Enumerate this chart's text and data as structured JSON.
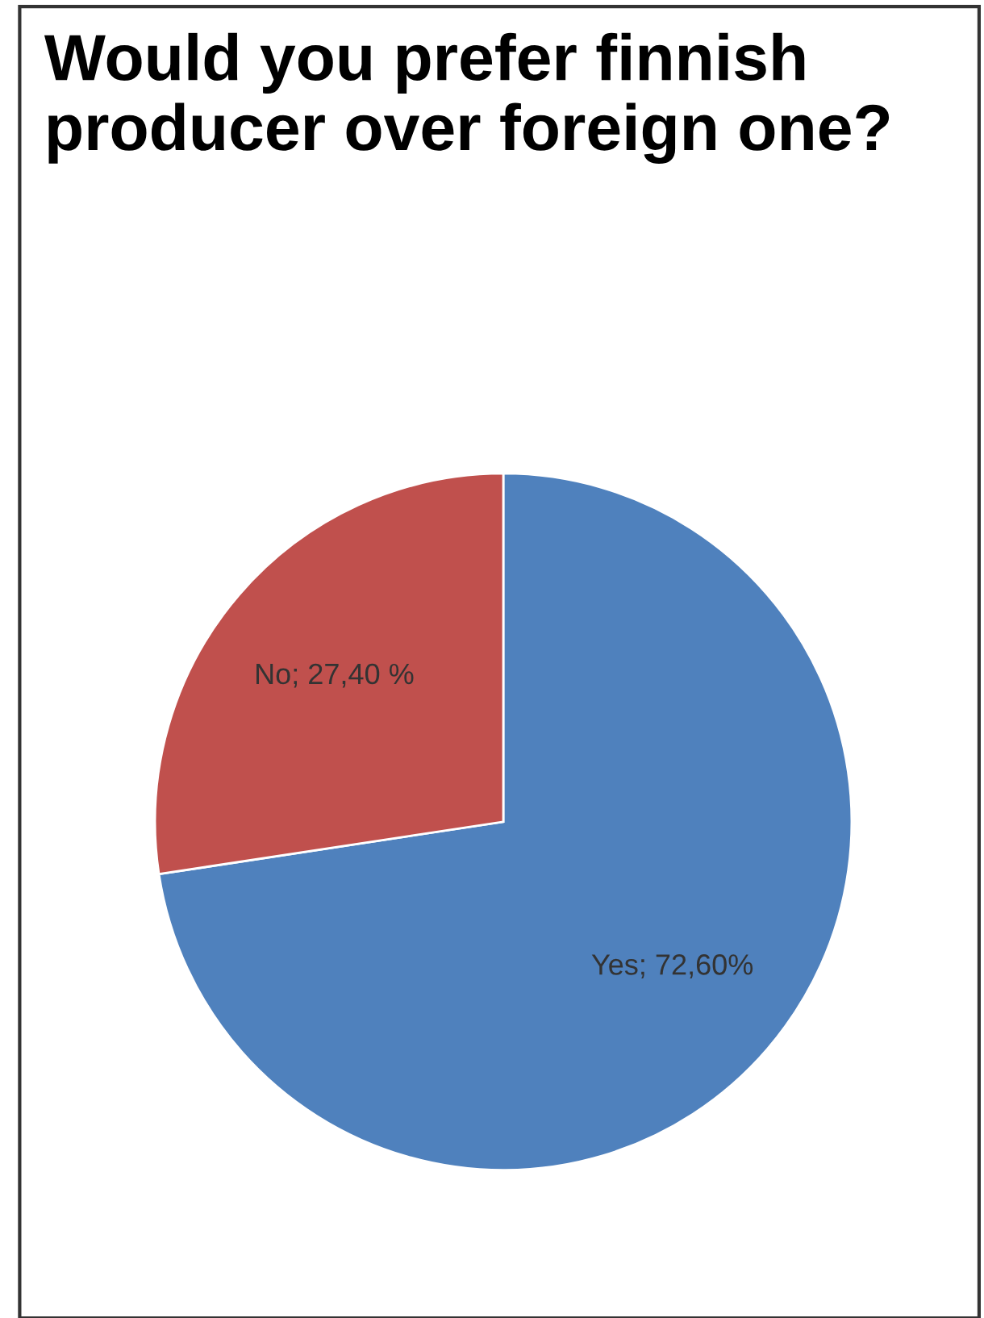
{
  "chart_data": {
    "type": "pie",
    "title": "Would you prefer finnish producer over foreign one?",
    "categories": [
      "Yes",
      "No"
    ],
    "values": [
      72.6,
      27.4
    ],
    "colors": [
      "#4f81bd",
      "#c0504d"
    ],
    "value_labels": [
      "72,60%",
      "27,40 %"
    ]
  }
}
